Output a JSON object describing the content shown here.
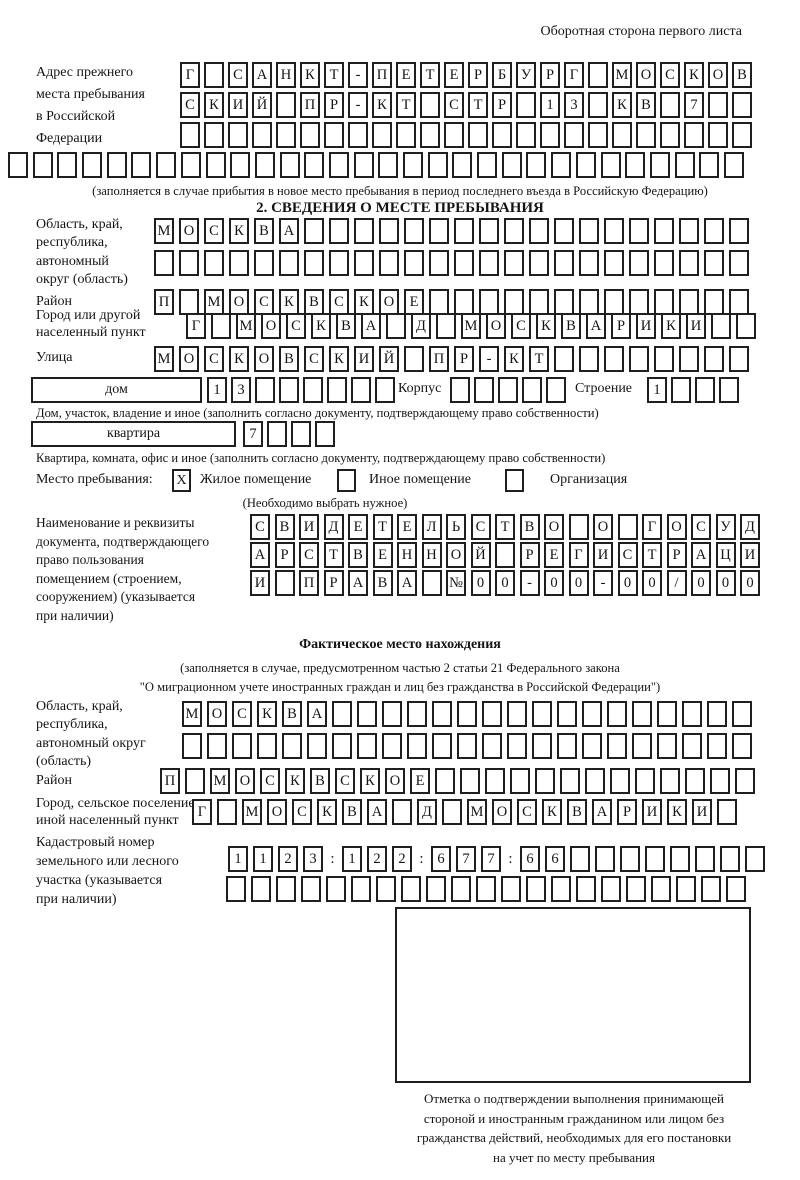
{
  "colors": {
    "ink": "#141414",
    "border": "#1f1f1f",
    "background": "#ffffff"
  },
  "header": {
    "title": "Оборотная сторона первого листа"
  },
  "prev_address": {
    "label": "Адрес прежнего\nместа пребывания\nв Российской\nФедерации",
    "rows": [
      "Г САНКТ-ПЕТЕРБУРГ МОСКОВ",
      "СКИЙ ПР-КТ СТР 13 КВ 7  ",
      "                        "
    ],
    "row_full": "                              ",
    "note": "(заполняется в случае прибытия в новое место пребывания в период последнего въезда в Российскую Федерацию)"
  },
  "section2": {
    "title": "2. СВЕДЕНИЯ О МЕСТЕ ПРЕБЫВАНИЯ",
    "oblast": {
      "label": "Область, край,\nреспублика,\nавтономный\nокруг (область)",
      "rows": [
        "МОСКВА                  ",
        "                        "
      ]
    },
    "raion": {
      "label": "Район",
      "cells": "П МОСКВСКОЕ             "
    },
    "gorod": {
      "label": "Город или другой\nнаселенный пункт",
      "cells": "Г МОСКВА Д МОСКВАРИКИ  "
    },
    "ulitsa": {
      "label": "Улица",
      "cells": "МОСКОВСКИЙ ПР-КТ        "
    },
    "dom": {
      "box_label": "дом",
      "cells": "13      ",
      "korpus_label": "Корпус",
      "korpus_cells": "     ",
      "stroenie_label": "Строение",
      "stroenie_cells": "1   ",
      "caption": "Дом, участок, владение и иное (заполнить согласно документу, подтверждающему право собственности)"
    },
    "kvartira": {
      "box_label": "квартира",
      "cells": "7   ",
      "caption": "Квартира, комната, офис и иное (заполнить согласно документу, подтверждающему право собственности)"
    },
    "mesto": {
      "label": "Место пребывания:",
      "options": [
        "Жилое помещение",
        "Иное помещение",
        "Организация"
      ],
      "marks": [
        "X",
        "",
        ""
      ],
      "note": "(Необходимо выбрать нужное)"
    },
    "doc": {
      "label": "Наименование и реквизиты\nдокумента, подтверждающего\nправо пользования\nпомещением (строением,\nсооружением) (указывается\nпри наличии)",
      "rows": [
        "СВИДЕТЕЛЬСТВО О ГОСУД",
        "АРСТВЕННОЙ РЕГИСТРАЦИ",
        "И ПРАВА №00-00-00/000"
      ]
    }
  },
  "fact": {
    "title": "Фактическое место нахождения",
    "note": "(заполняется в случае, предусмотренном частью 2 статьи 21 Федерального закона\n\"О миграционном учете иностранных граждан и лиц без гражданства в Российской Федерации\")",
    "oblast": {
      "label": "Область, край,\nреспублика,\nавтономный округ\n(область)",
      "rows": [
        "МОСКВА                 ",
        "                       "
      ]
    },
    "raion": {
      "label": "Район",
      "cells": "П МОСКВСКОЕ             "
    },
    "gorod": {
      "label": "Город, сельское поселение,\nиной населенный пункт",
      "cells": "Г МОСКВА Д МОСКВАРИКИ "
    },
    "kadastr": {
      "label": "Кадастровый номер\nземельного или лесного\nучастка (указывается\nпри наличии)",
      "rows": [
        "1123:122:677:66        ",
        "                     "
      ]
    },
    "stamp_caption": "Отметка о подтверждении выполнения принимающей\nстороной и иностранным гражданином или лицом без\nгражданства действий, необходимых для его постановки\nна учет по месту пребывания"
  }
}
